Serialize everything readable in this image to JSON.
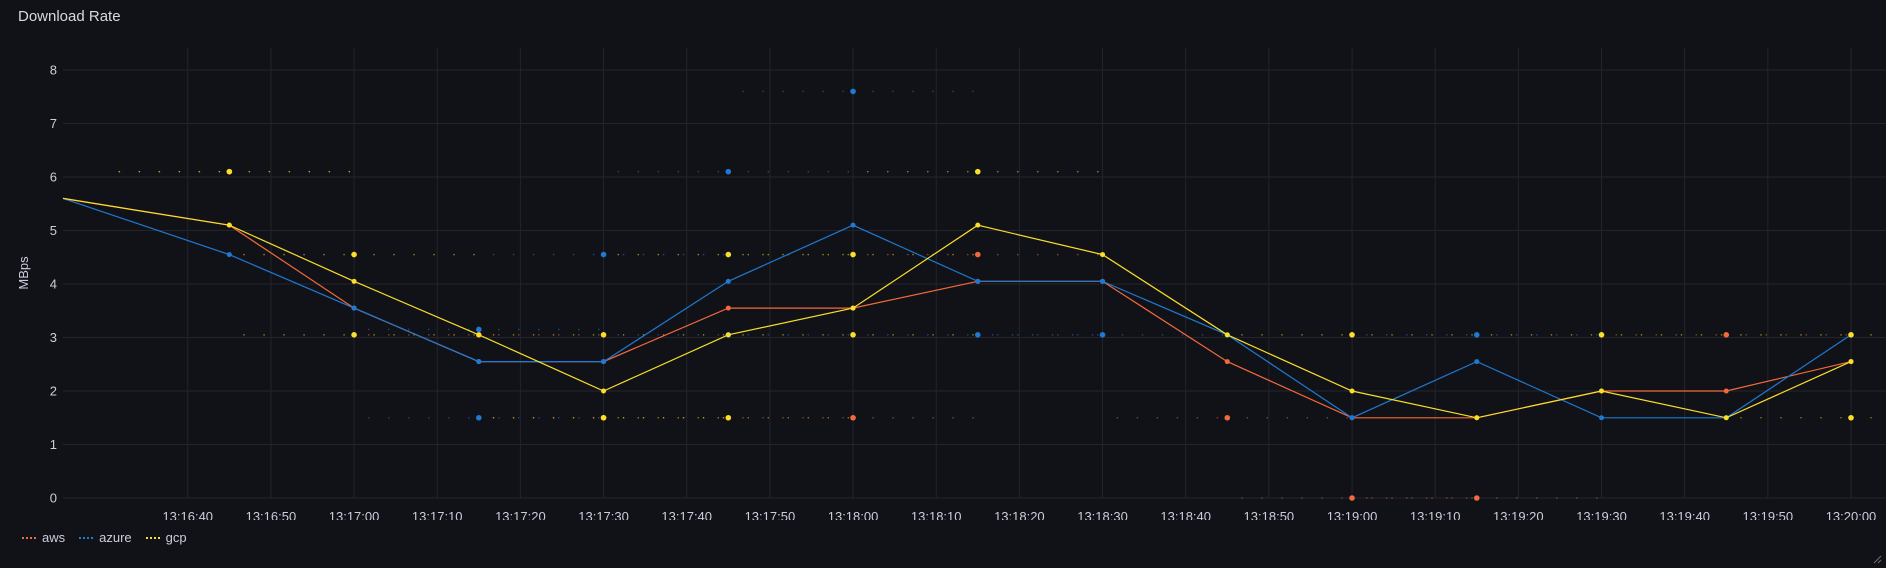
{
  "panel": {
    "title": "Download Rate"
  },
  "colors": {
    "aws": "#f2693b",
    "azure": "#1f78d1",
    "gcp": "#fade2a",
    "grid": "#23252b",
    "tick": "#ccccdc"
  },
  "chart_data": {
    "type": "line",
    "title": "Download Rate",
    "xlabel": "",
    "ylabel": "MBps",
    "ylim": [
      0,
      8
    ],
    "yticks": [
      0,
      1,
      2,
      3,
      4,
      5,
      6,
      7,
      8
    ],
    "xlim": [
      "13:16:25",
      "13:20:00"
    ],
    "xtick_labels": [
      "13:16:40",
      "13:16:50",
      "13:17:00",
      "13:17:10",
      "13:17:20",
      "13:17:30",
      "13:17:40",
      "13:17:50",
      "13:18:00",
      "13:18:10",
      "13:18:20",
      "13:18:30",
      "13:18:40",
      "13:18:50",
      "13:19:00",
      "13:19:10",
      "13:19:20",
      "13:19:30",
      "13:19:40",
      "13:19:50",
      "13:20:00"
    ],
    "grid": true,
    "legend_position": "bottom-left",
    "series": [
      {
        "name": "aws",
        "color": "#f2693b",
        "line": [
          {
            "x": "13:16:25",
            "y": 5.6
          },
          {
            "x": "13:16:45",
            "y": 5.1
          },
          {
            "x": "13:17:00",
            "y": 3.55
          },
          {
            "x": "13:17:15",
            "y": 2.55
          },
          {
            "x": "13:17:30",
            "y": 2.55
          },
          {
            "x": "13:17:45",
            "y": 3.55
          },
          {
            "x": "13:18:00",
            "y": 3.55
          },
          {
            "x": "13:18:15",
            "y": 4.05
          },
          {
            "x": "13:18:30",
            "y": 4.05
          },
          {
            "x": "13:18:45",
            "y": 2.55
          },
          {
            "x": "13:19:00",
            "y": 1.5
          },
          {
            "x": "13:19:15",
            "y": 1.5
          },
          {
            "x": "13:19:30",
            "y": 2.0
          },
          {
            "x": "13:19:45",
            "y": 2.0
          },
          {
            "x": "13:20:00",
            "y": 2.55
          }
        ],
        "points": [
          {
            "x": "13:16:45",
            "y": 6.1
          },
          {
            "x": "13:17:15",
            "y": 3.05
          },
          {
            "x": "13:17:30",
            "y": 1.5
          },
          {
            "x": "13:18:00",
            "y": 1.5
          },
          {
            "x": "13:18:15",
            "y": 4.55
          },
          {
            "x": "13:18:45",
            "y": 1.5
          },
          {
            "x": "13:19:00",
            "y": 0.0
          },
          {
            "x": "13:19:15",
            "y": 0.0
          },
          {
            "x": "13:19:45",
            "y": 3.05
          }
        ]
      },
      {
        "name": "azure",
        "color": "#1f78d1",
        "line": [
          {
            "x": "13:16:25",
            "y": 5.6
          },
          {
            "x": "13:16:45",
            "y": 4.55
          },
          {
            "x": "13:17:00",
            "y": 3.55
          },
          {
            "x": "13:17:15",
            "y": 2.55
          },
          {
            "x": "13:17:30",
            "y": 2.55
          },
          {
            "x": "13:17:45",
            "y": 4.05
          },
          {
            "x": "13:18:00",
            "y": 5.1
          },
          {
            "x": "13:18:15",
            "y": 4.05
          },
          {
            "x": "13:18:30",
            "y": 4.05
          },
          {
            "x": "13:18:45",
            "y": 3.05
          },
          {
            "x": "13:19:00",
            "y": 1.5
          },
          {
            "x": "13:19:15",
            "y": 2.55
          },
          {
            "x": "13:19:30",
            "y": 1.5
          },
          {
            "x": "13:19:45",
            "y": 1.5
          },
          {
            "x": "13:20:00",
            "y": 3.05
          }
        ],
        "points": [
          {
            "x": "13:17:15",
            "y": 3.15
          },
          {
            "x": "13:17:15",
            "y": 1.5
          },
          {
            "x": "13:17:30",
            "y": 4.55
          },
          {
            "x": "13:17:45",
            "y": 6.1
          },
          {
            "x": "13:17:45",
            "y": 3.05
          },
          {
            "x": "13:18:00",
            "y": 7.6
          },
          {
            "x": "13:18:15",
            "y": 3.05
          },
          {
            "x": "13:18:30",
            "y": 3.05
          },
          {
            "x": "13:19:15",
            "y": 3.05
          }
        ]
      },
      {
        "name": "gcp",
        "color": "#fade2a",
        "line": [
          {
            "x": "13:16:25",
            "y": 5.6
          },
          {
            "x": "13:16:45",
            "y": 5.1
          },
          {
            "x": "13:17:00",
            "y": 4.05
          },
          {
            "x": "13:17:15",
            "y": 3.05
          },
          {
            "x": "13:17:30",
            "y": 2.0
          },
          {
            "x": "13:17:45",
            "y": 3.05
          },
          {
            "x": "13:18:00",
            "y": 3.55
          },
          {
            "x": "13:18:15",
            "y": 5.1
          },
          {
            "x": "13:18:30",
            "y": 4.55
          },
          {
            "x": "13:18:45",
            "y": 3.05
          },
          {
            "x": "13:19:00",
            "y": 2.0
          },
          {
            "x": "13:19:15",
            "y": 1.5
          },
          {
            "x": "13:19:30",
            "y": 2.0
          },
          {
            "x": "13:19:45",
            "y": 1.5
          },
          {
            "x": "13:20:00",
            "y": 2.55
          }
        ],
        "points": [
          {
            "x": "13:16:45",
            "y": 6.1
          },
          {
            "x": "13:17:00",
            "y": 4.55
          },
          {
            "x": "13:17:00",
            "y": 3.05
          },
          {
            "x": "13:17:30",
            "y": 3.05
          },
          {
            "x": "13:17:30",
            "y": 1.5
          },
          {
            "x": "13:17:45",
            "y": 4.55
          },
          {
            "x": "13:17:45",
            "y": 1.5
          },
          {
            "x": "13:18:00",
            "y": 4.55
          },
          {
            "x": "13:18:00",
            "y": 3.05
          },
          {
            "x": "13:18:15",
            "y": 6.1
          },
          {
            "x": "13:19:00",
            "y": 3.05
          },
          {
            "x": "13:19:30",
            "y": 3.05
          },
          {
            "x": "13:20:00",
            "y": 3.05
          },
          {
            "x": "13:20:00",
            "y": 1.5
          }
        ]
      }
    ]
  },
  "legend": {
    "items": [
      {
        "label": "aws",
        "color": "#f2693b"
      },
      {
        "label": "azure",
        "color": "#1f78d1"
      },
      {
        "label": "gcp",
        "color": "#fade2a"
      }
    ]
  }
}
